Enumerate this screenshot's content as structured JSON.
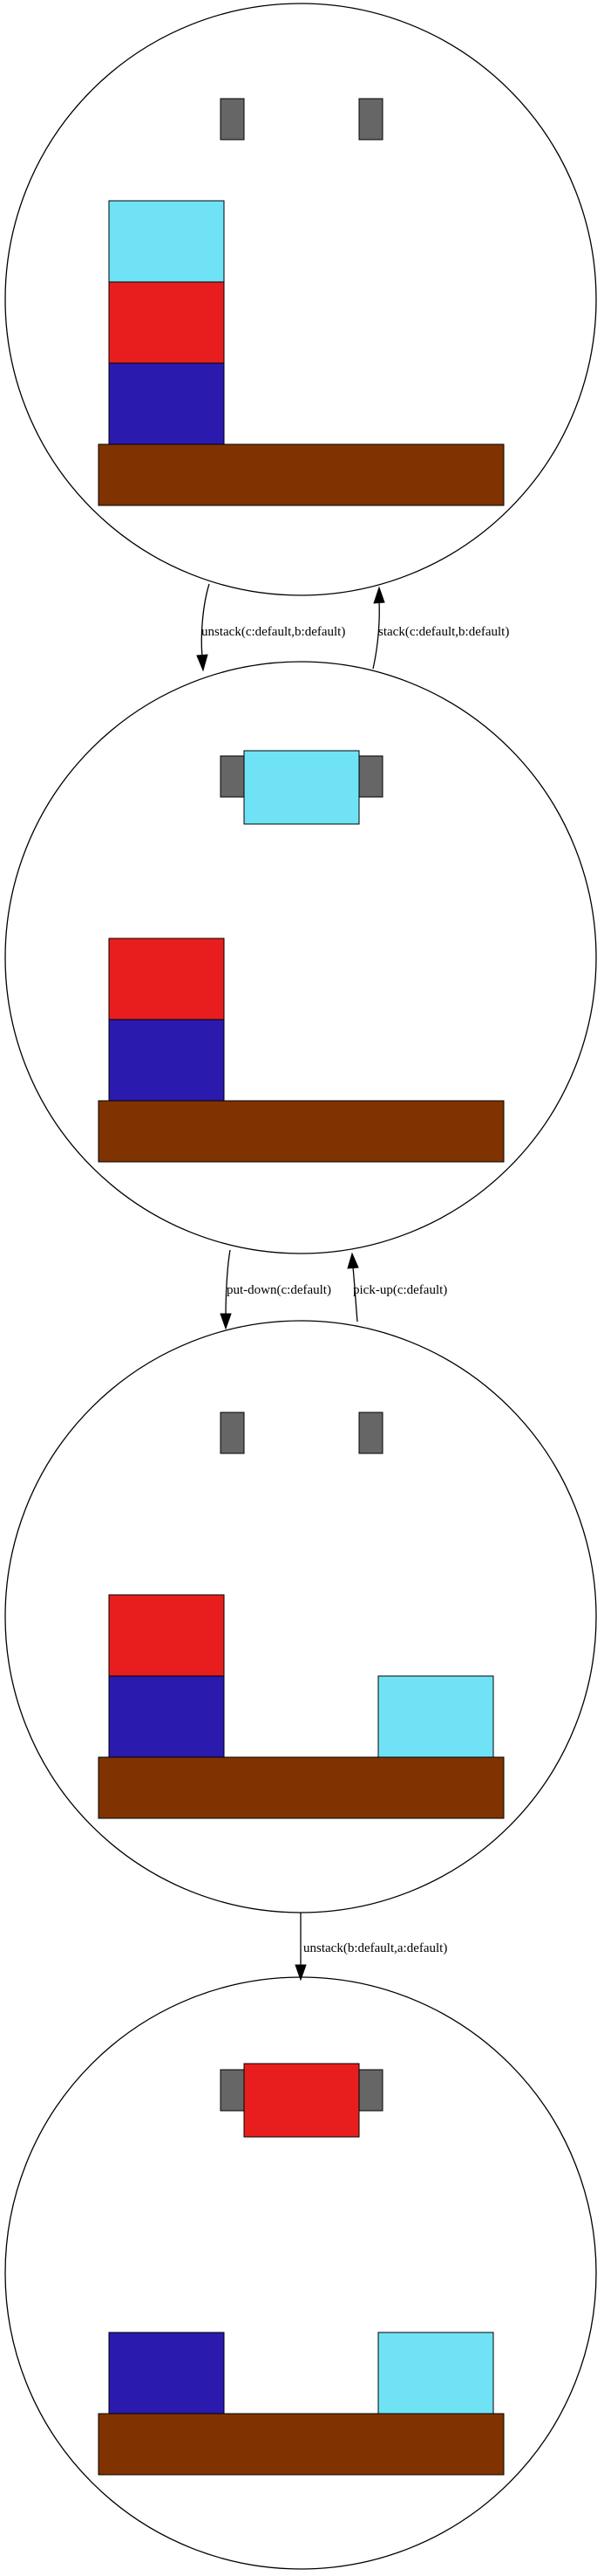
{
  "colors": {
    "table": "#803300",
    "gripper": "#666666",
    "block_a": "#2a1aad",
    "block_b": "#e81e1e",
    "block_c": "#6fe3f5",
    "circle_stroke": "#000000",
    "background": "#ffffff"
  },
  "states": [
    {
      "id": "state-1",
      "holding": null,
      "stacks": [
        {
          "slot": "left",
          "blocks": [
            "a",
            "b",
            "c"
          ]
        }
      ]
    },
    {
      "id": "state-2",
      "holding": "c",
      "stacks": [
        {
          "slot": "left",
          "blocks": [
            "a",
            "b"
          ]
        }
      ]
    },
    {
      "id": "state-3",
      "holding": null,
      "stacks": [
        {
          "slot": "left",
          "blocks": [
            "a",
            "b"
          ]
        },
        {
          "slot": "right",
          "blocks": [
            "c"
          ]
        }
      ]
    },
    {
      "id": "state-4",
      "holding": "b",
      "stacks": [
        {
          "slot": "left",
          "blocks": [
            "a"
          ]
        },
        {
          "slot": "right",
          "blocks": [
            "c"
          ]
        }
      ]
    }
  ],
  "transitions": [
    {
      "from": "state-1",
      "to": "state-2",
      "label": "unstack(c:default,b:default)"
    },
    {
      "from": "state-2",
      "to": "state-1",
      "label": "stack(c:default,b:default)"
    },
    {
      "from": "state-2",
      "to": "state-3",
      "label": "put-down(c:default)"
    },
    {
      "from": "state-3",
      "to": "state-2",
      "label": "pick-up(c:default)"
    },
    {
      "from": "state-3",
      "to": "state-4",
      "label": "unstack(b:default,a:default)"
    }
  ]
}
